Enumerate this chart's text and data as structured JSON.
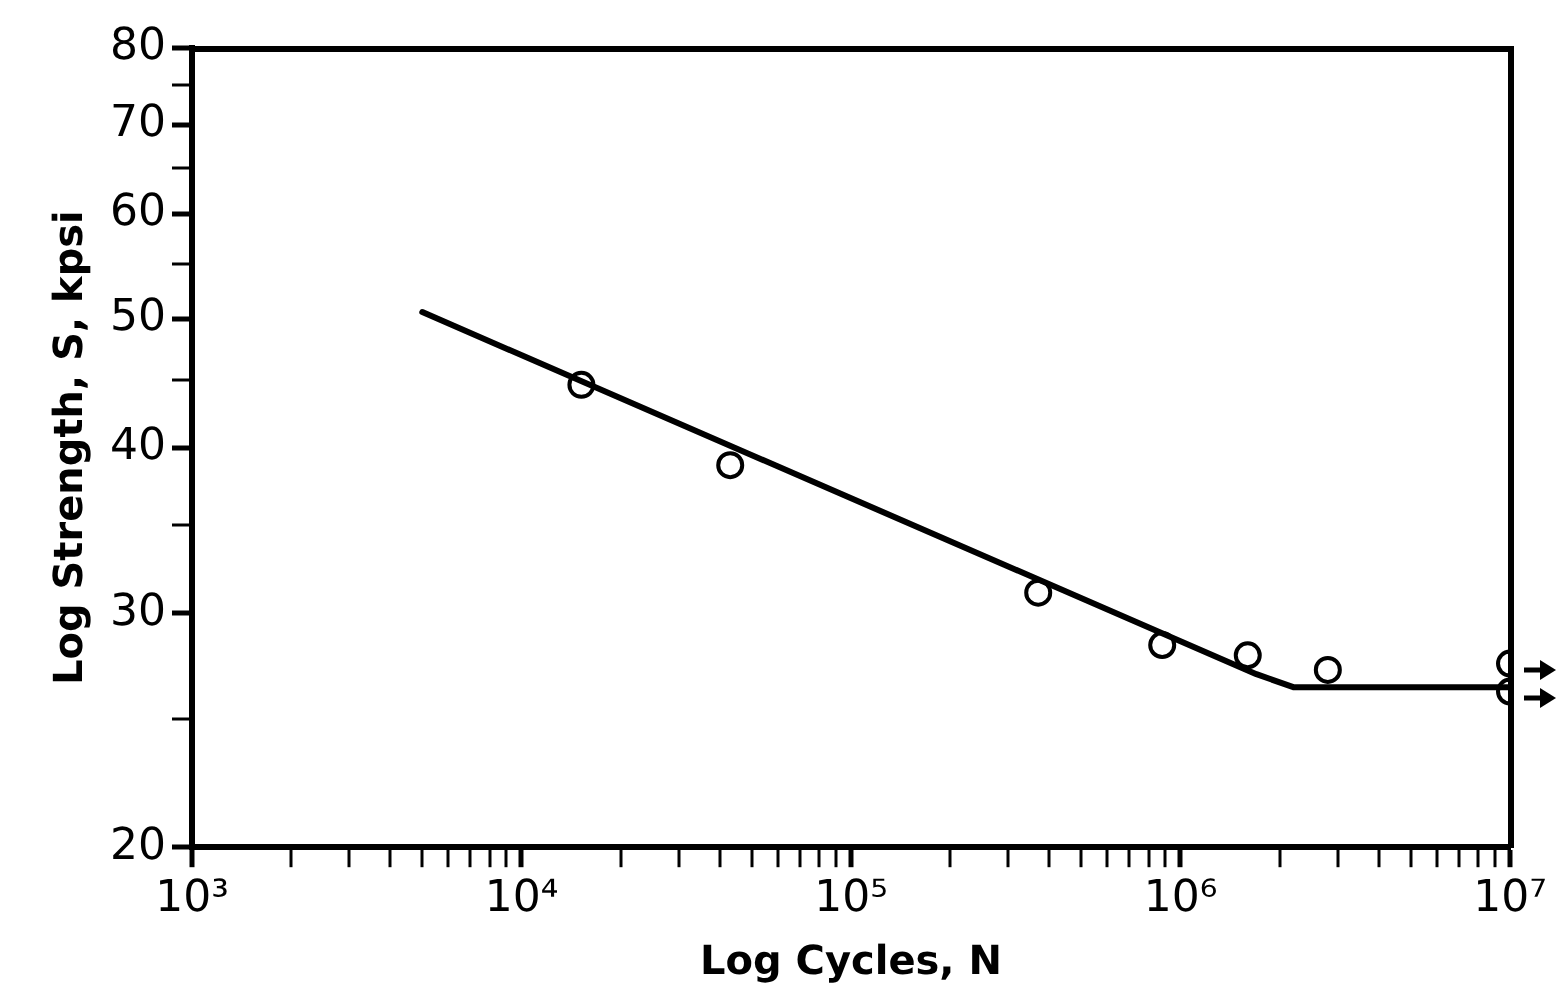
{
  "chart_data": {
    "type": "scatter",
    "xlabel": "Log Cycles, N",
    "ylabel": "Log Strength, S, kpsi",
    "log": "xy",
    "grid": false,
    "legend": false,
    "marker": "circle",
    "xlim": [
      1000,
      10000000
    ],
    "ylim": [
      20,
      80
    ],
    "xticks": [
      {
        "value": 1000,
        "label": "10³"
      },
      {
        "value": 2000,
        "label": null
      },
      {
        "value": 3000,
        "label": null
      },
      {
        "value": 4000,
        "label": null
      },
      {
        "value": 5000,
        "label": null
      },
      {
        "value": 6000,
        "label": null
      },
      {
        "value": 7000,
        "label": null
      },
      {
        "value": 8000,
        "label": null
      },
      {
        "value": 9000,
        "label": null
      },
      {
        "value": 10000,
        "label": "10⁴"
      },
      {
        "value": 20000,
        "label": null
      },
      {
        "value": 30000,
        "label": null
      },
      {
        "value": 40000,
        "label": null
      },
      {
        "value": 50000,
        "label": null
      },
      {
        "value": 60000,
        "label": null
      },
      {
        "value": 70000,
        "label": null
      },
      {
        "value": 80000,
        "label": null
      },
      {
        "value": 90000,
        "label": null
      },
      {
        "value": 100000,
        "label": "10⁵"
      },
      {
        "value": 200000,
        "label": null
      },
      {
        "value": 300000,
        "label": null
      },
      {
        "value": 400000,
        "label": null
      },
      {
        "value": 500000,
        "label": null
      },
      {
        "value": 600000,
        "label": null
      },
      {
        "value": 700000,
        "label": null
      },
      {
        "value": 800000,
        "label": null
      },
      {
        "value": 900000,
        "label": null
      },
      {
        "value": 1000000,
        "label": "10⁶"
      },
      {
        "value": 2000000,
        "label": null
      },
      {
        "value": 3000000,
        "label": null
      },
      {
        "value": 4000000,
        "label": null
      },
      {
        "value": 5000000,
        "label": null
      },
      {
        "value": 6000000,
        "label": null
      },
      {
        "value": 7000000,
        "label": null
      },
      {
        "value": 8000000,
        "label": null
      },
      {
        "value": 9000000,
        "label": null
      },
      {
        "value": 10000000,
        "label": "10⁷"
      }
    ],
    "yticks": [
      20,
      {
        "value": 25,
        "label": null
      },
      30,
      {
        "value": 35,
        "label": null
      },
      40,
      {
        "value": 45,
        "label": null
      },
      50,
      {
        "value": 55,
        "label": null
      },
      60,
      {
        "value": 65,
        "label": null
      },
      70,
      {
        "value": 75,
        "label": null
      },
      80
    ],
    "series": [
      {
        "type": "line",
        "color": "#000000",
        "marker": "none",
        "line_style": "solid",
        "x": [
          5000,
          1700000,
          2200000,
          10000000
        ],
        "values": [
          50.6,
          27.0,
          26.4,
          26.4
        ]
      },
      {
        "color": "#000000",
        "x": [
          15200,
          43000,
          370000,
          880000,
          1600000,
          2800000,
          10000000,
          10000000
        ],
        "values": [
          44.6,
          38.8,
          31.1,
          28.4,
          27.9,
          27.2,
          27.5,
          26.2
        ]
      }
    ]
  }
}
